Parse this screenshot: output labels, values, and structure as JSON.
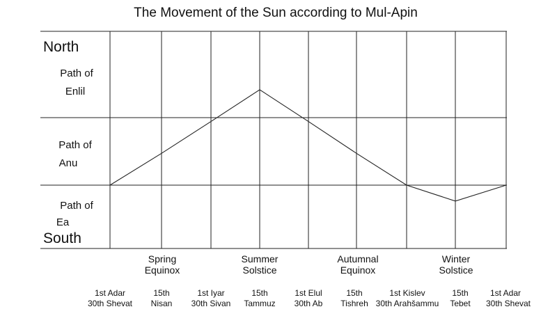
{
  "title": "The Movement of the Sun according to Mul-Apin",
  "directions": {
    "north": "North",
    "south": "South"
  },
  "bands": [
    {
      "line1": "Path of",
      "line2": "Enlil"
    },
    {
      "line1": "Path of",
      "line2": "Anu"
    },
    {
      "line1": "Path of",
      "line2": "Ea"
    }
  ],
  "seasons": [
    {
      "line1": "Spring",
      "line2": "Equinox"
    },
    {
      "line1": "Summer",
      "line2": "Solstice"
    },
    {
      "line1": "Autumnal",
      "line2": "Equinox"
    },
    {
      "line1": "Winter",
      "line2": "Solstice"
    }
  ],
  "dates": [
    {
      "line1": "1st Adar",
      "line2": "30th Shevat"
    },
    {
      "line1": "15th",
      "line2": "Nisan"
    },
    {
      "line1": "1st Iyar",
      "line2": "30th Sivan"
    },
    {
      "line1": "15th",
      "line2": "Tammuz"
    },
    {
      "line1": "1st Elul",
      "line2": "30th Ab"
    },
    {
      "line1": "15th",
      "line2": "Tishreh"
    },
    {
      "line1": "1st Kislev",
      "line2": "30th Arahšammu"
    },
    {
      "line1": "15th",
      "line2": "Tebet"
    },
    {
      "line1": "1st Adar",
      "line2": "30th Shevat"
    }
  ],
  "sun_path_levels": [
    0,
    1,
    2,
    3,
    2,
    1,
    0,
    -0.5,
    0
  ]
}
